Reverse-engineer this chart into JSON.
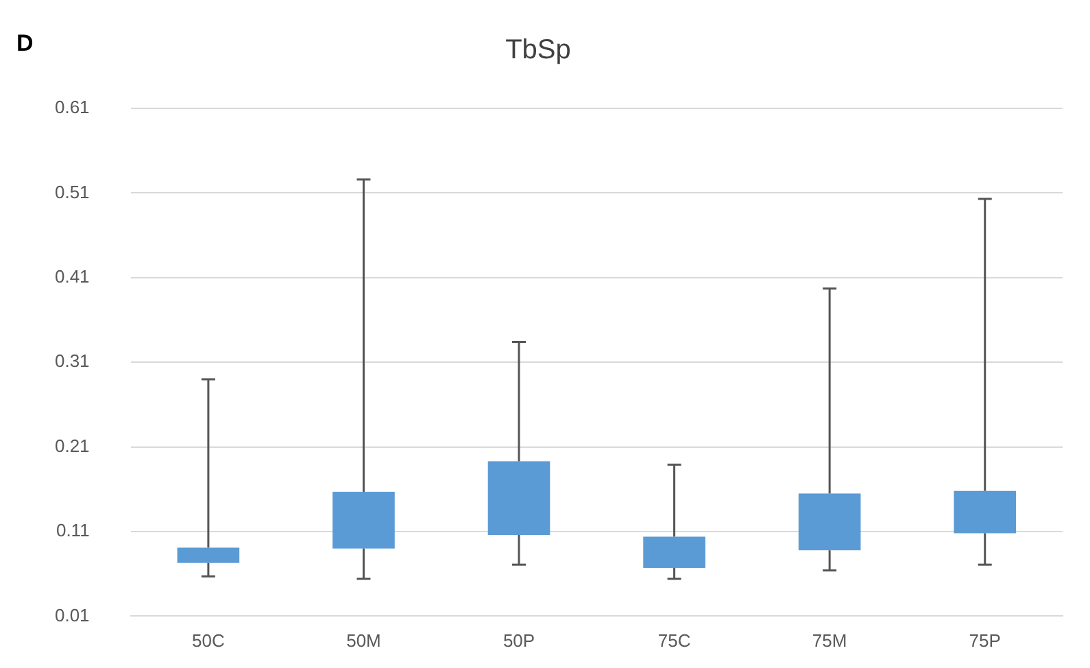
{
  "chart_data": {
    "type": "bar",
    "title": "TbSp",
    "annotations": [
      "D"
    ],
    "categories": [
      "50C",
      "50M",
      "50P",
      "75C",
      "75M",
      "75P"
    ],
    "base": [
      0.073,
      0.09,
      0.106,
      0.067,
      0.088,
      0.108
    ],
    "values": [
      0.018,
      0.067,
      0.087,
      0.037,
      0.067,
      0.05
    ],
    "errors": [
      [
        0.057,
        0.29
      ],
      [
        0.054,
        0.526
      ],
      [
        0.071,
        0.334
      ],
      [
        0.054,
        0.189
      ],
      [
        0.064,
        0.397
      ],
      [
        0.071,
        0.503
      ]
    ],
    "color": "#5b9bd5",
    "ylim": [
      0.01,
      0.61
    ],
    "yticks": [
      0.01,
      0.11,
      0.21,
      0.31,
      0.41,
      0.51,
      0.61
    ],
    "grid": "y",
    "legend": false
  }
}
